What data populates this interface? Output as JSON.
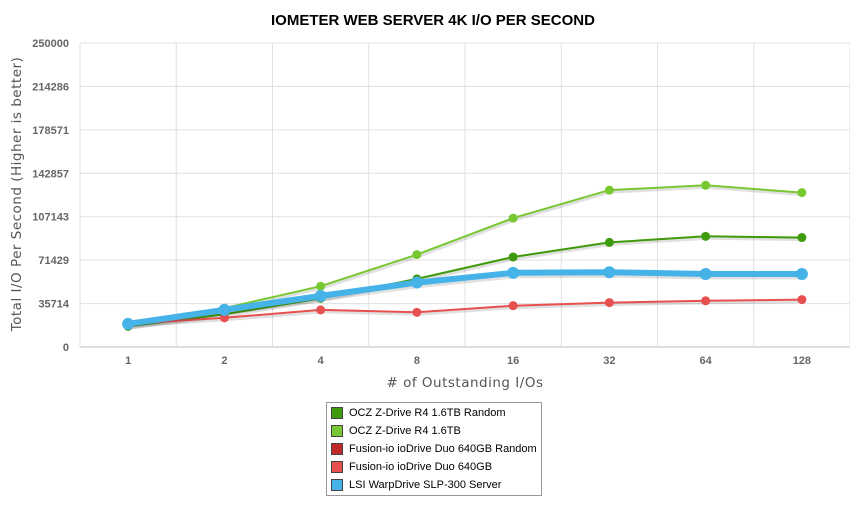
{
  "chart_data": {
    "type": "line",
    "title": "IOMETER WEB SERVER 4K I/O PER SECOND",
    "xlabel": "# of Outstanding I/Os",
    "ylabel": "Total I/O Per Second (Higher is better)",
    "categories": [
      "1",
      "2",
      "4",
      "8",
      "16",
      "32",
      "64",
      "128"
    ],
    "y_ticks": [
      "0",
      "35714",
      "71429",
      "107143",
      "142857",
      "178571",
      "214286",
      "250000"
    ],
    "ylim": [
      0,
      250000
    ],
    "grid": true,
    "legend_position": "bottom",
    "series": [
      {
        "name": "OCZ Z-Drive R4 1.6TB Random",
        "color": "#3f9b0b",
        "values": [
          17000,
          27000,
          40000,
          56000,
          74000,
          86000,
          91000,
          90000
        ]
      },
      {
        "name": "OCZ Z-Drive R4 1.6TB",
        "color": "#78c832",
        "values": [
          19000,
          32000,
          50000,
          76000,
          106000,
          129000,
          133000,
          127000
        ]
      },
      {
        "name": "Fusion-io ioDrive Duo 640GB Random",
        "color": "#c0282a",
        "values": null
      },
      {
        "name": "Fusion-io ioDrive Duo 640GB",
        "color": "#e85050",
        "values": [
          19000,
          24000,
          30500,
          28500,
          34000,
          36500,
          38000,
          39000
        ]
      },
      {
        "name": "LSI WarpDrive SLP-300 Server",
        "color": "#45b2e8",
        "values": [
          19000,
          30500,
          42000,
          53000,
          61000,
          61500,
          60000,
          60000
        ]
      }
    ]
  }
}
